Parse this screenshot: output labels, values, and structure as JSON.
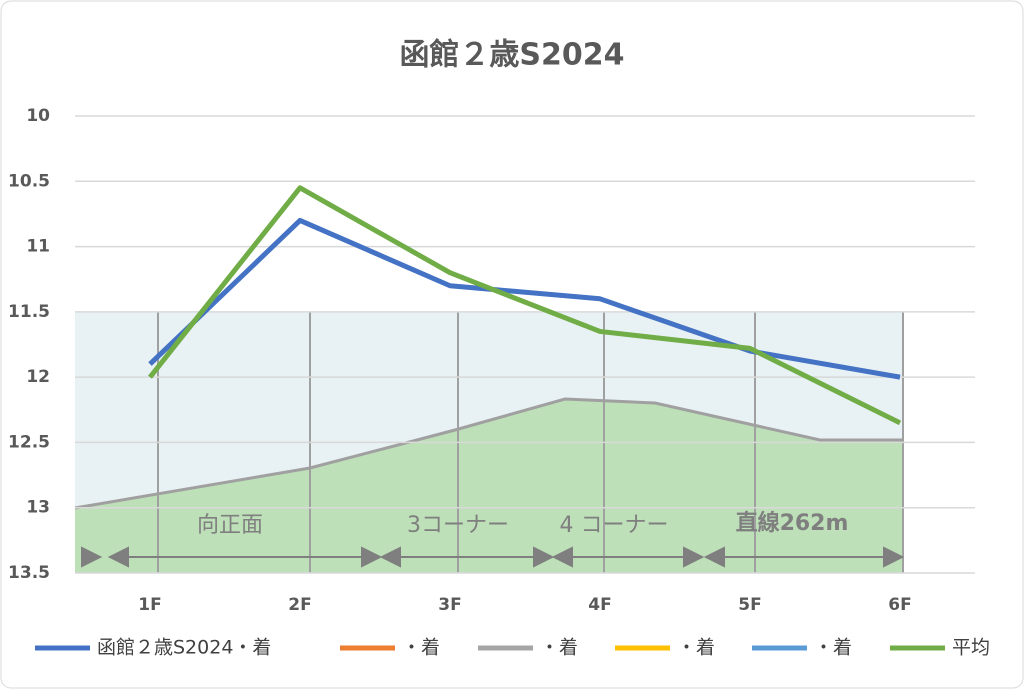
{
  "chart_data": {
    "type": "line",
    "title": "函館２歳S2024",
    "categories": [
      "1F",
      "2F",
      "3F",
      "4F",
      "5F",
      "6F"
    ],
    "series": [
      {
        "name": "函館２歳S2024・着",
        "color": "#4472c4",
        "values": [
          11.9,
          10.8,
          11.3,
          11.4,
          11.8,
          12.0
        ]
      },
      {
        "name": "・着",
        "color": "#ed7d31",
        "values": [
          null,
          null,
          null,
          null,
          null,
          null
        ]
      },
      {
        "name": "・着",
        "color": "#a5a5a5",
        "values": [
          null,
          null,
          null,
          null,
          null,
          null
        ]
      },
      {
        "name": "・着",
        "color": "#ffc000",
        "values": [
          null,
          null,
          null,
          null,
          null,
          null
        ]
      },
      {
        "name": "・着",
        "color": "#5b9bd5",
        "values": [
          null,
          null,
          null,
          null,
          null,
          null
        ]
      },
      {
        "name": "平均",
        "color": "#70ad47",
        "values": [
          12.0,
          10.55,
          11.2,
          11.65,
          11.78,
          12.35
        ]
      }
    ],
    "ylim": [
      10,
      13.5
    ],
    "yreverse": true,
    "yticks": [
      10,
      10.5,
      11,
      11.5,
      12,
      12.5,
      13,
      13.5
    ],
    "grid": true,
    "legend": "bottom",
    "annotations": [
      {
        "text": "向正面"
      },
      {
        "text": "3コーナー"
      },
      {
        "text": "4 コーナー"
      },
      {
        "text": "直線262m"
      }
    ]
  }
}
